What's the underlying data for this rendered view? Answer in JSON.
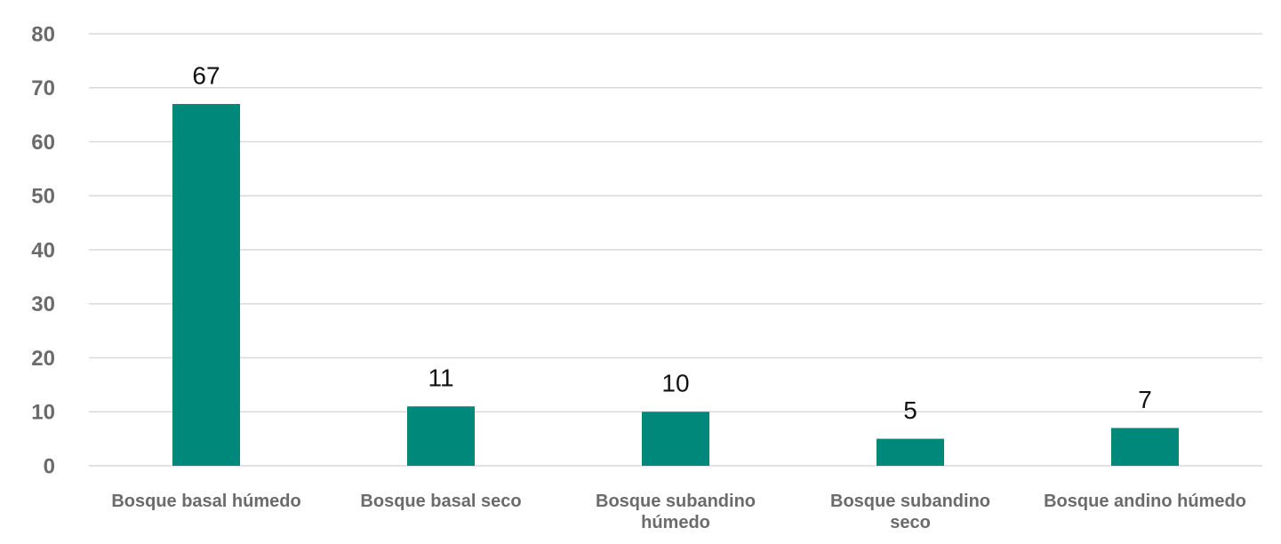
{
  "chart_data": {
    "type": "bar",
    "categories": [
      "Bosque basal húmedo",
      "Bosque basal seco",
      "Bosque subandino húmedo",
      "Bosque subandino seco",
      "Bosque andino húmedo"
    ],
    "values": [
      67,
      11,
      10,
      5,
      7
    ],
    "color": "#00897b",
    "ylim": [
      0,
      80
    ],
    "yticks": [
      0,
      10,
      20,
      30,
      40,
      50,
      60,
      70,
      80
    ],
    "grid": true
  }
}
